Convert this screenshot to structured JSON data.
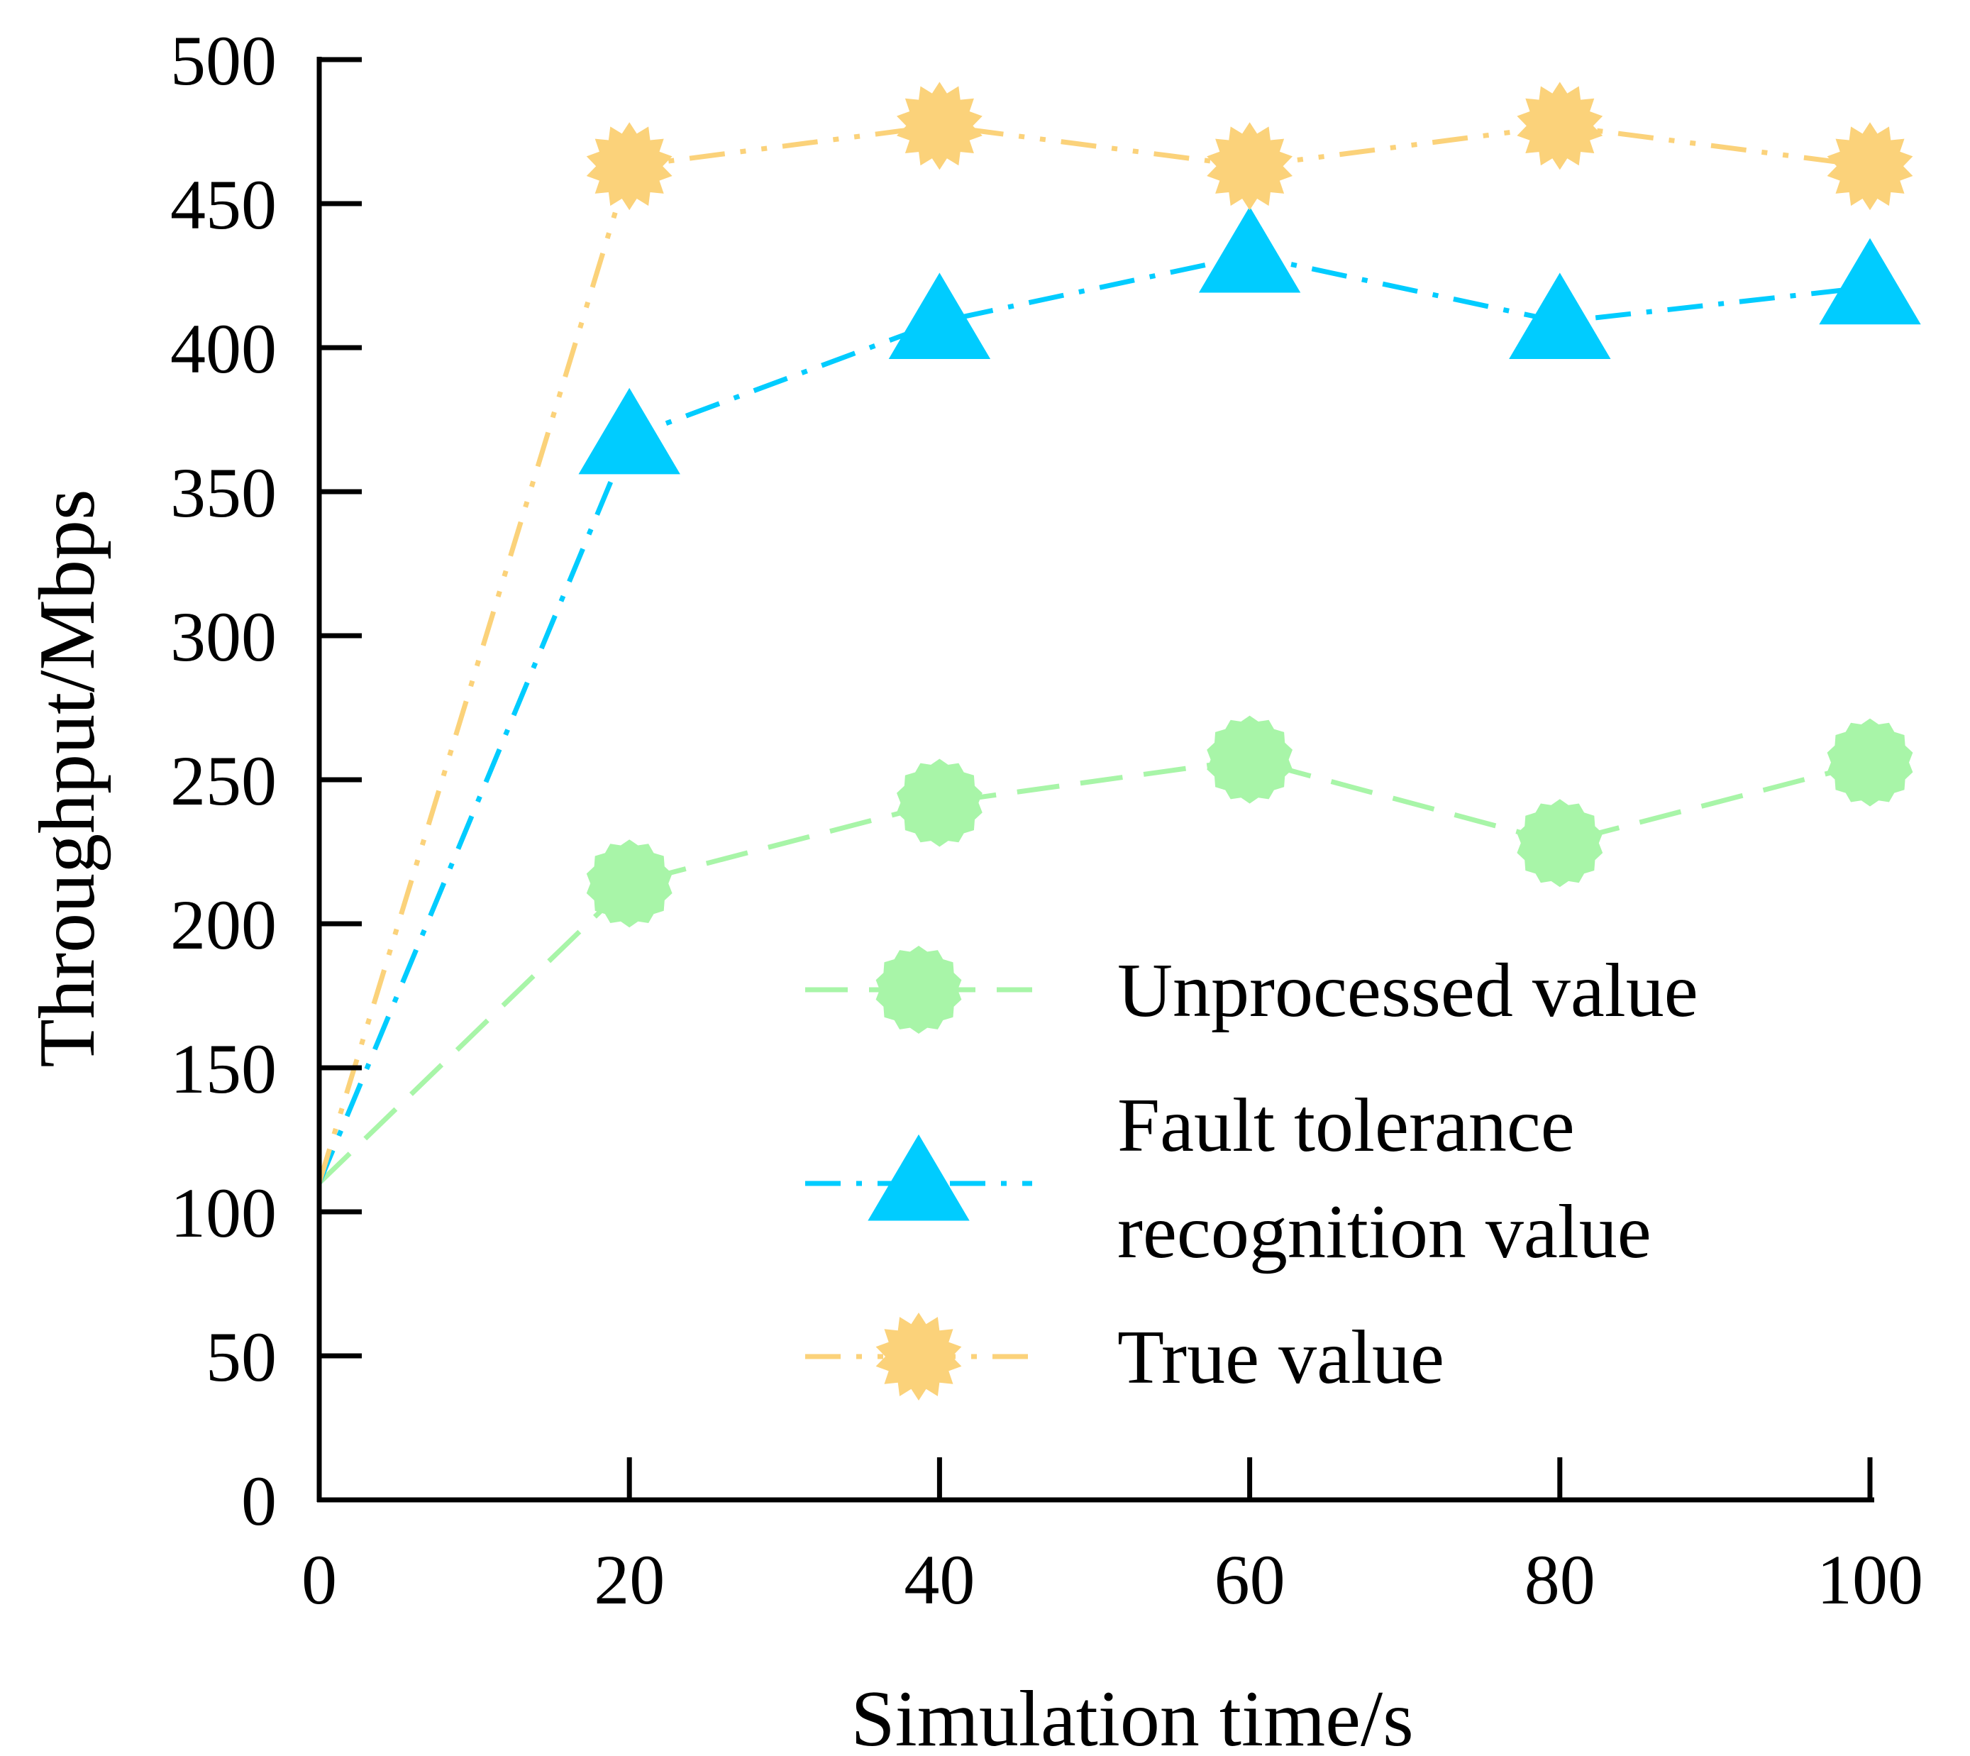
{
  "chart_data": {
    "type": "line",
    "title": "",
    "xlabel": "Simulation time/s",
    "ylabel": "Throughput/Mbps",
    "xlim": [
      0,
      100
    ],
    "ylim": [
      0,
      500
    ],
    "xticks": [
      0,
      20,
      40,
      60,
      80,
      100
    ],
    "yticks": [
      0,
      50,
      100,
      150,
      200,
      250,
      300,
      350,
      400,
      450,
      500
    ],
    "grid": false,
    "legend_position": "bottom-right",
    "x": [
      0,
      20,
      40,
      60,
      80,
      100
    ],
    "series": [
      {
        "name": "Unprocessed value",
        "values": [
          110,
          214,
          242,
          257,
          228,
          256
        ],
        "color": "#a8f5a8",
        "marker": "circle",
        "line": "dashed"
      },
      {
        "name": "Fault tolerance recognition value",
        "values": [
          110,
          369,
          409,
          432,
          409,
          421
        ],
        "color": "#00ccff",
        "marker": "triangle",
        "line": "dash-dot"
      },
      {
        "name": "True value",
        "values": [
          110,
          463,
          477,
          463,
          477,
          463
        ],
        "color": "#fbd27a",
        "marker": "star",
        "line": "dash-dot-dot"
      }
    ],
    "legend_labels": {
      "unprocessed": "Unprocessed value",
      "fault_line1": "Fault tolerance",
      "fault_line2": "recognition value",
      "true": "True value"
    }
  }
}
